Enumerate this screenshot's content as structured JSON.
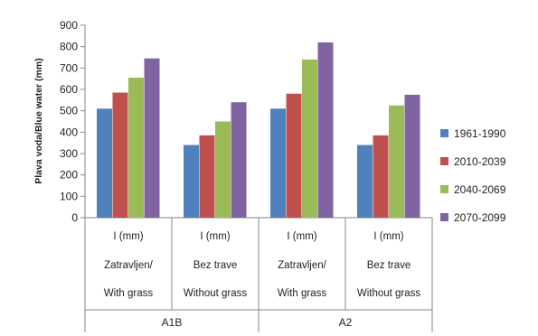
{
  "chart_data": {
    "type": "bar",
    "title": "",
    "xlabel": "",
    "ylabel": "Plava voda/Blue water (mm)",
    "ylim": [
      0,
      900
    ],
    "yticks": [
      0,
      100,
      200,
      300,
      400,
      500,
      600,
      700,
      800,
      900
    ],
    "grid": false,
    "legend_position": "right",
    "categories": [
      {
        "line1": "I (mm)",
        "line2": "Zatravljen/",
        "line3": "With grass"
      },
      {
        "line1": "I (mm)",
        "line2": "Bez trave",
        "line3": "Without grass"
      },
      {
        "line1": "I (mm)",
        "line2": "Zatravljen/",
        "line3": "With grass"
      },
      {
        "line1": "I (mm)",
        "line2": "Bez trave",
        "line3": "Without grass"
      }
    ],
    "groups": [
      {
        "label": "A1B",
        "categories": [
          0,
          1
        ]
      },
      {
        "label": "A2",
        "categories": [
          2,
          3
        ]
      }
    ],
    "series": [
      {
        "name": "1961-1990",
        "color": "#4F81BD",
        "values": [
          510,
          340,
          510,
          340
        ]
      },
      {
        "name": "2010-2039",
        "color": "#C0504D",
        "values": [
          585,
          385,
          580,
          385
        ]
      },
      {
        "name": "2040-2069",
        "color": "#9BBB59",
        "values": [
          655,
          450,
          740,
          525
        ]
      },
      {
        "name": "2070-2099",
        "color": "#8064A2",
        "values": [
          745,
          540,
          820,
          575
        ]
      }
    ]
  }
}
